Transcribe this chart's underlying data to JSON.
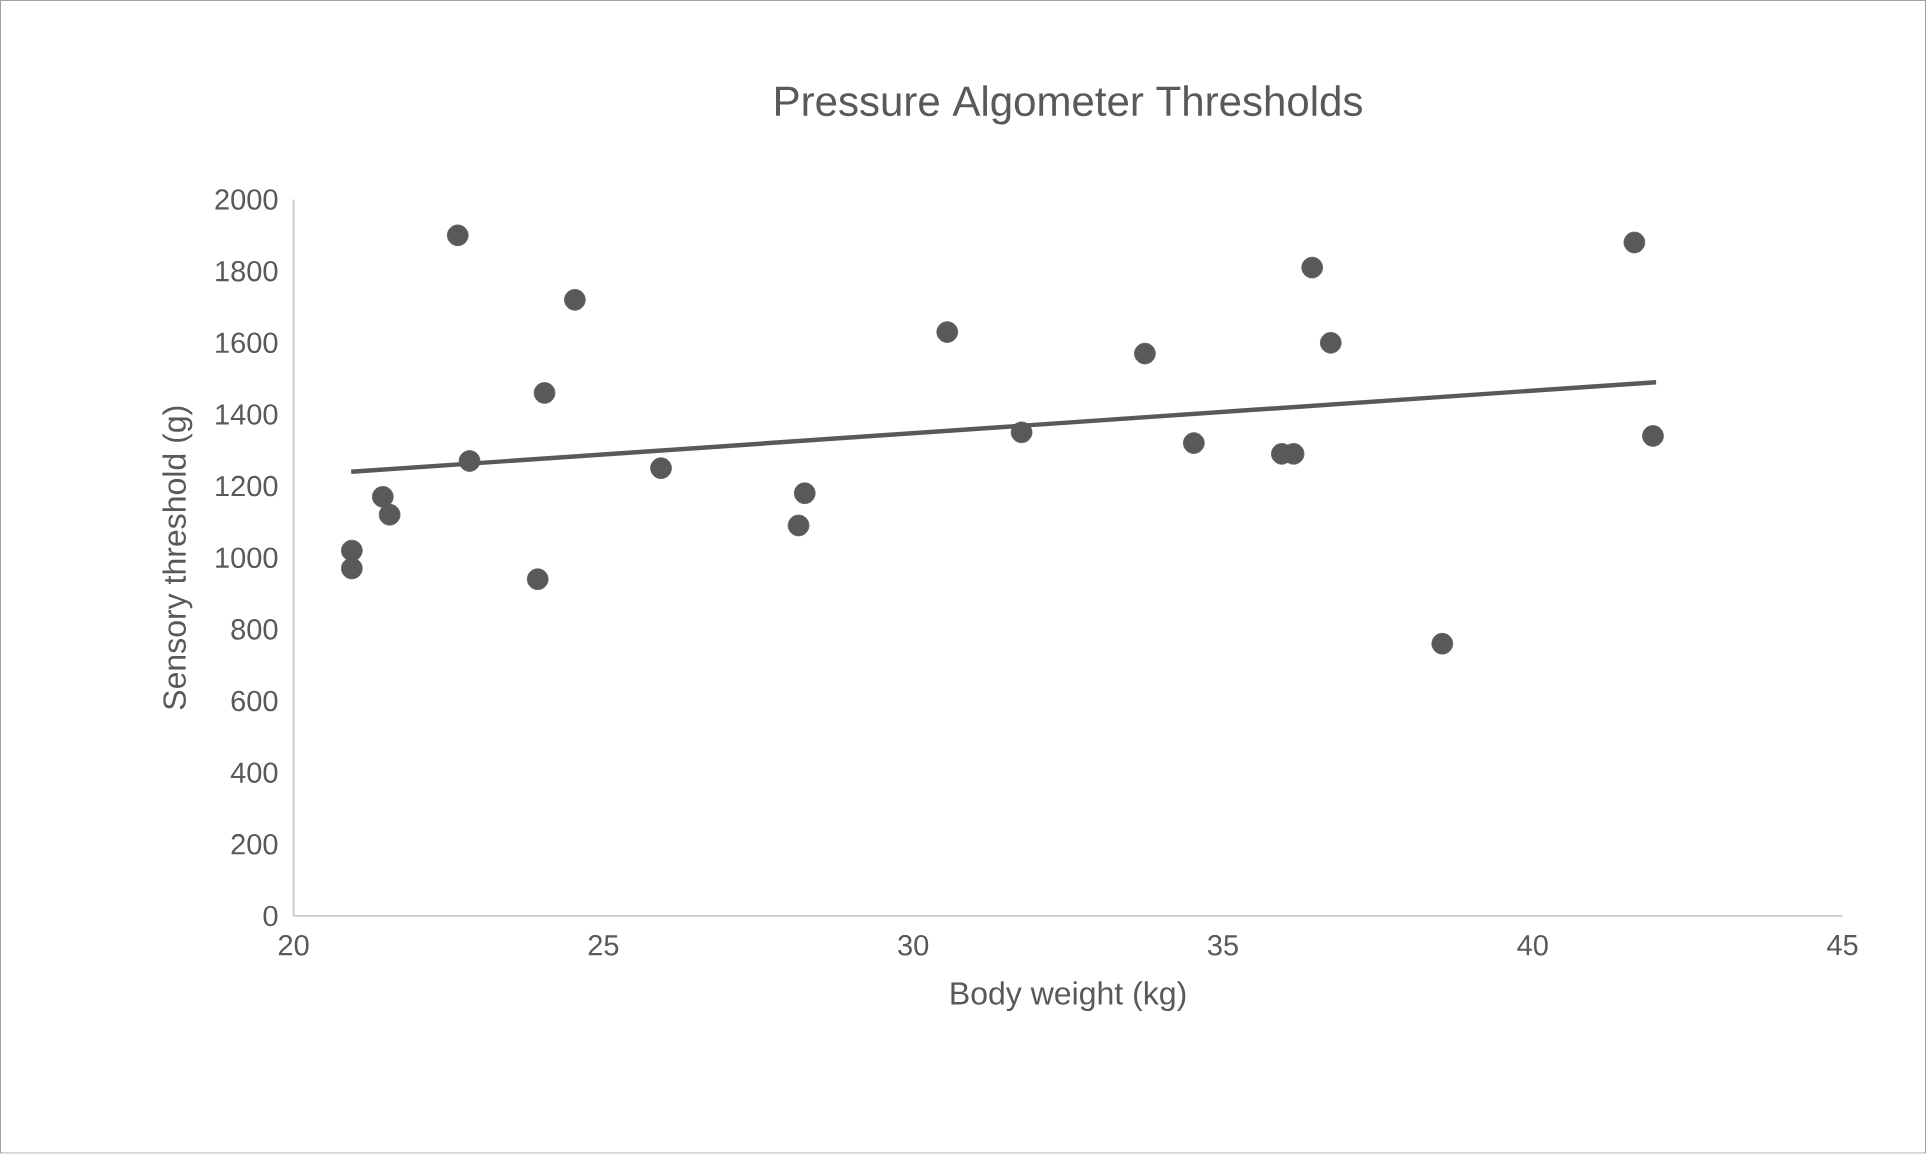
{
  "chart_data": {
    "type": "scatter",
    "title": "Pressure Algometer Thresholds",
    "xlabel": "Body weight (kg)",
    "ylabel": "Sensory threshold (g)",
    "xlim": [
      20,
      45
    ],
    "xticks": [
      20,
      25,
      30,
      35,
      40,
      45
    ],
    "ylim": [
      0,
      2000
    ],
    "yticks": [
      0,
      200,
      400,
      600,
      800,
      1000,
      1200,
      1400,
      1600,
      1800,
      2000
    ],
    "grid": false,
    "legend": false,
    "series": [
      {
        "type": "scatter",
        "marker": "circle",
        "color": "#595959",
        "x": [
          20.94,
          20.94,
          21.44,
          21.55,
          22.65,
          22.84,
          23.94,
          24.05,
          24.54,
          25.93,
          28.15,
          28.25,
          30.55,
          31.75,
          33.74,
          34.53,
          35.95,
          36.14,
          36.44,
          36.74,
          38.54,
          41.64,
          41.94
        ],
        "values": [
          1020,
          970,
          1170,
          1120,
          1900,
          1270,
          940,
          1460,
          1720,
          1250,
          1090,
          1180,
          1630,
          1350,
          1570,
          1320,
          1290,
          1290,
          1810,
          1600,
          760,
          1880,
          1340
        ]
      },
      {
        "type": "line",
        "marker": "none",
        "color": "#595959",
        "x": [
          20.93,
          41.99
        ],
        "values": [
          1240,
          1490
        ]
      }
    ]
  }
}
